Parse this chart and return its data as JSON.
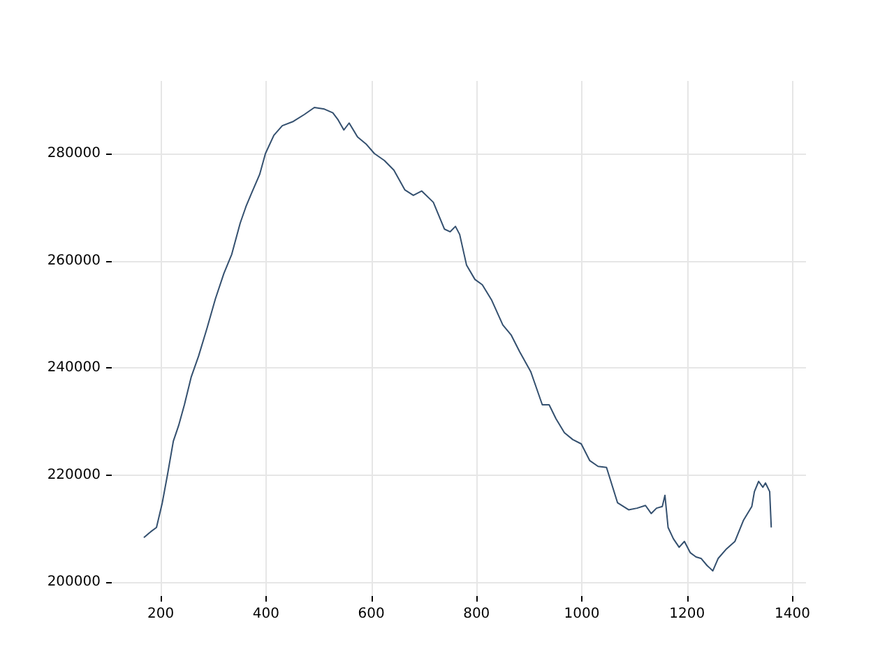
{
  "chart_data": {
    "type": "line",
    "x": [
      168,
      181,
      192,
      203,
      213,
      224,
      234,
      245,
      258,
      272,
      288,
      304,
      320,
      335,
      351,
      362,
      373,
      388,
      399,
      415,
      431,
      452,
      473,
      492,
      511,
      527,
      537,
      548,
      558,
      574,
      590,
      606,
      625,
      643,
      664,
      680,
      696,
      718,
      739,
      750,
      760,
      768,
      781,
      797,
      811,
      829,
      850,
      866,
      882,
      903,
      925,
      938,
      951,
      967,
      983,
      999,
      1015,
      1031,
      1047,
      1068,
      1089,
      1105,
      1121,
      1132,
      1142,
      1153,
      1158,
      1164,
      1174,
      1185,
      1195,
      1206,
      1217,
      1227,
      1238,
      1249,
      1259,
      1275,
      1291,
      1307,
      1323,
      1328,
      1336,
      1344,
      1349,
      1357,
      1360
    ],
    "series": [
      {
        "color": "#34506f",
        "values": [
          208300,
          209400,
          210200,
          214800,
          220100,
          226300,
          229200,
          233100,
          238300,
          242200,
          247400,
          252900,
          257600,
          261200,
          267000,
          270100,
          272700,
          276100,
          280000,
          283400,
          285200,
          286000,
          287300,
          288600,
          288300,
          287600,
          286300,
          284400,
          285700,
          283100,
          281800,
          280000,
          278700,
          276900,
          273200,
          272200,
          273000,
          270900,
          265900,
          265400,
          266400,
          264900,
          259200,
          256500,
          255500,
          252600,
          248000,
          246100,
          243000,
          239300,
          233100,
          233100,
          230500,
          227900,
          226600,
          225800,
          222700,
          221600,
          221400,
          214800,
          213500,
          213800,
          214300,
          212800,
          213800,
          214100,
          216200,
          210200,
          208100,
          206500,
          207600,
          205500,
          204700,
          204400,
          203100,
          202100,
          204400,
          206200,
          207600,
          211500,
          214100,
          216900,
          218800,
          217700,
          218500,
          216900,
          210200
        ]
      }
    ],
    "xlim": [
      107,
      1426
    ],
    "ylim": [
      197400,
      293550
    ],
    "xticks": [
      200,
      400,
      600,
      800,
      1000,
      1200,
      1400
    ],
    "yticks": [
      200000,
      220000,
      240000,
      260000,
      280000
    ],
    "grid": true
  }
}
